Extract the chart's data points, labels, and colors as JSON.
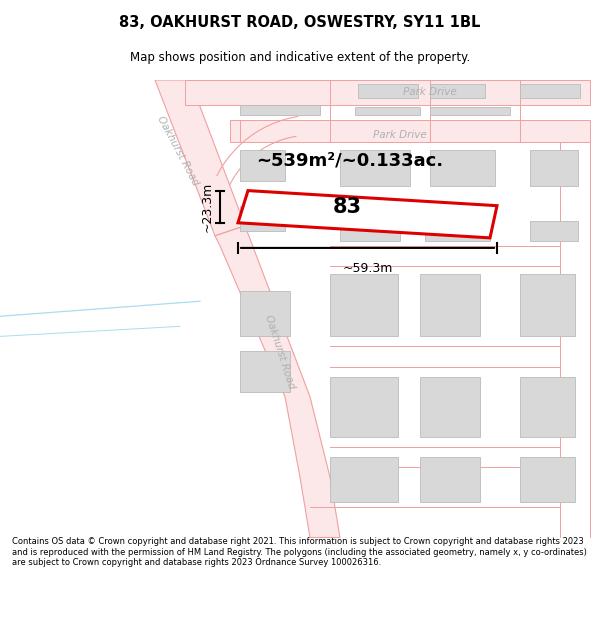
{
  "title": "83, OAKHURST ROAD, OSWESTRY, SY11 1BL",
  "subtitle": "Map shows position and indicative extent of the property.",
  "footer": "Contains OS data © Crown copyright and database right 2021. This information is subject to Crown copyright and database rights 2023 and is reproduced with the permission of HM Land Registry. The polygons (including the associated geometry, namely x, y co-ordinates) are subject to Crown copyright and database rights 2023 Ordnance Survey 100026316.",
  "area_text": "~539m²/~0.133ac.",
  "width_label": "~59.3m",
  "height_label": "~23.3m",
  "property_number": "83",
  "map_bg": "#ffffff",
  "road_line_color": "#f0a0a0",
  "road_fill_color": "#fce8e8",
  "building_color": "#d8d8d8",
  "building_edge": "#bbbbbb",
  "highlight_color": "#dd0000",
  "dim_line_color": "#000000",
  "road_label_color": "#b0b0b0",
  "title_color": "#000000",
  "footer_color": "#000000",
  "blue_line_color": "#aaddee"
}
